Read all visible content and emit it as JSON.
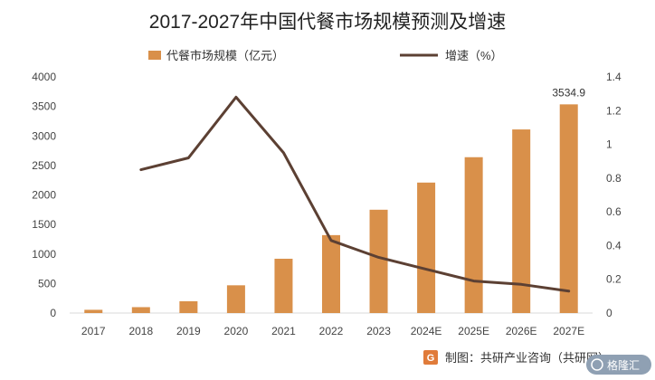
{
  "chart_data": {
    "type": "bar",
    "title": "2017-2027年中国代餐市场规模预测及增速",
    "categories": [
      "2017",
      "2018",
      "2019",
      "2020",
      "2021",
      "2022",
      "2023",
      "2024E",
      "2025E",
      "2026E",
      "2027E"
    ],
    "series": [
      {
        "name": "代餐市场规模（亿元）",
        "type": "bar",
        "axis": "left",
        "color": "#D9904A",
        "values": [
          55,
          100,
          200,
          470,
          920,
          1320,
          1750,
          2210,
          2640,
          3110,
          3534.9
        ]
      },
      {
        "name": "增速（%）",
        "type": "line",
        "axis": "right",
        "color": "#5C4033",
        "values": [
          null,
          0.85,
          0.92,
          1.28,
          0.95,
          0.43,
          0.33,
          0.26,
          0.19,
          0.17,
          0.13
        ]
      }
    ],
    "y_left": {
      "ylim": [
        0,
        4000
      ],
      "ticks": [
        "0",
        "500",
        "1000",
        "1500",
        "2000",
        "2500",
        "3000",
        "3500",
        "4000"
      ]
    },
    "y_right": {
      "ylim": [
        0,
        1.4
      ],
      "ticks": [
        "0",
        "0.2",
        "0.4",
        "0.6",
        "0.8",
        "1",
        "1.2",
        "1.4"
      ]
    },
    "data_labels": [
      {
        "category": "2027E",
        "text": "3534.9"
      }
    ],
    "legend": "top",
    "grid": false
  },
  "source": {
    "text": "制图：共研产业咨询（共研网）"
  },
  "watermark": {
    "text": "格隆汇"
  },
  "colors": {
    "bar": "#D9904A",
    "line": "#5C4033",
    "source_icon": "#E07B3A",
    "watermark_badge": "#8FA0B3"
  }
}
